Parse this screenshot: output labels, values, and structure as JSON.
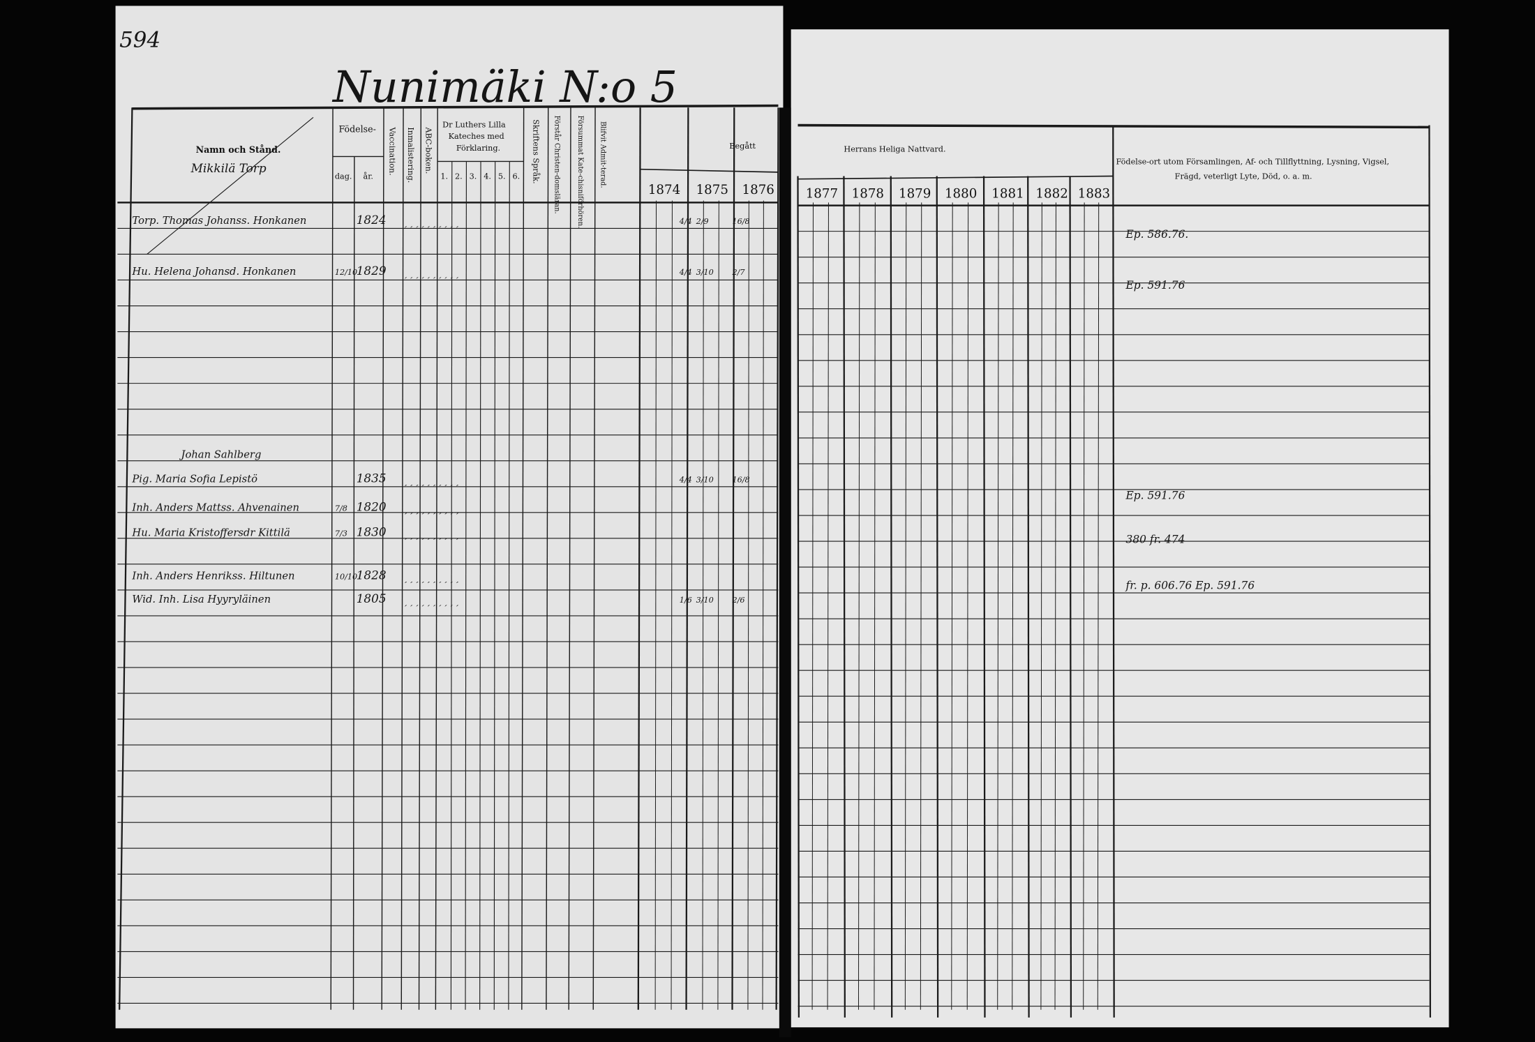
{
  "page_number": "594",
  "title": "Nunimäki N:o 5",
  "headers": {
    "name": "Namn och Stånd.",
    "birth": "Födelse-",
    "birth_day": "dag.",
    "birth_year": "år.",
    "vaccination": "Vaccination.",
    "inmalistering": "Inmalistering.",
    "abc": "ABC-boken.",
    "catechism_line1": "Dr Luthers Lilla",
    "catechism_line2": "Kateches med",
    "catechism_line3": "Förklaring.",
    "catechism_parts": [
      "1.",
      "2.",
      "3.",
      "4.",
      "5.",
      "6."
    ],
    "scripture": "Skriftens Språk.",
    "christendom": "Förstår Christen-domsläran.",
    "missed": "Försummat Kate-chisniförhören.",
    "admitted": "Blifvit Admit-terad.",
    "begatt": "Begått",
    "communion": "Herrans Heliga Nattvard.",
    "notes_line1": "Födelse-ort utom Församlingen, Af- och Tillflyttning, Lysning, Vigsel,",
    "notes_line2": "Frägd, veterligt Lyte, Död, o. a. m.",
    "years_left": [
      "1874",
      "1875",
      "1876"
    ],
    "years_right": [
      "1877",
      "1878",
      "1879",
      "1880",
      "1881",
      "1882",
      "1883"
    ]
  },
  "household_heading": "Mikkilä Torp",
  "entries": [
    {
      "name": "Torp. Thomas Johanss. Honkanen",
      "day": "",
      "year": "1824",
      "dates": [
        "4/4",
        "2/9",
        "16/8"
      ],
      "note": "Ep. 586.76."
    },
    {
      "name": "Hu. Helena Johansd. Honkanen",
      "day": "12/10",
      "year": "1829",
      "dates": [
        "4/4",
        "3/10",
        "2/7"
      ],
      "note": "Ep. 591.76"
    },
    {
      "name": "Johan Sahlberg",
      "day": "",
      "year": "",
      "dates": [],
      "note": ""
    },
    {
      "name": "Pig. Maria Sofia Lepistö",
      "day": "",
      "year": "1835",
      "dates": [
        "4/4",
        "3/10",
        "16/8"
      ],
      "note": "Ep. 591.76"
    },
    {
      "name": "Inh. Anders Mattss. Ahvenainen",
      "day": "7/8",
      "year": "1820",
      "dates": [],
      "note": ""
    },
    {
      "name": "Hu. Maria Kristoffersdr Kittilä",
      "day": "7/3",
      "year": "1830",
      "dates": [],
      "note": "380 fr. 474"
    },
    {
      "name": "Inh. Anders Henrikss. Hiltunen",
      "day": "10/10",
      "year": "1828",
      "dates": [],
      "note": ""
    },
    {
      "name": "Wid. Inh. Lisa Hyyryläinen",
      "day": "",
      "year": "1805",
      "dates": [
        "1/6",
        "3/10",
        "2/6"
      ],
      "note": "fr. p. 606.76   Ep. 591.76"
    }
  ]
}
